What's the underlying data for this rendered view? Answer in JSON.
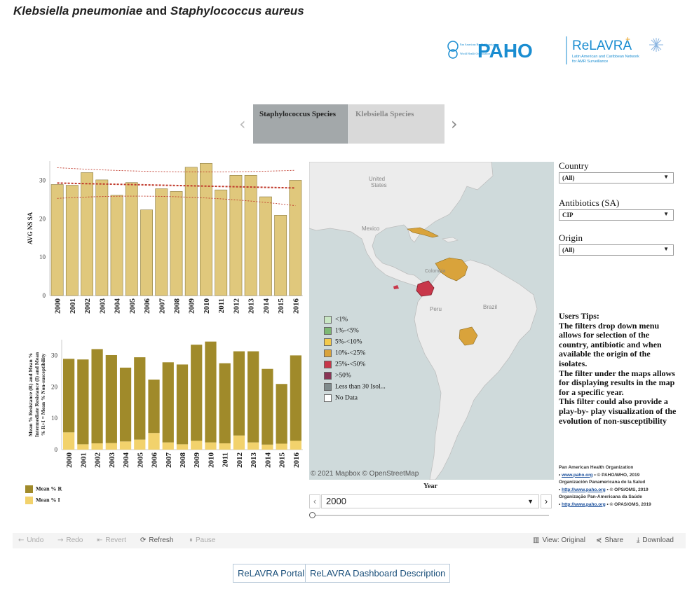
{
  "title": {
    "part1": "Klebsiella pneumoniae",
    "and": " and ",
    "part2": "Staphylococcus aureus"
  },
  "logo": {
    "paho": "PAHO",
    "relavra": "ReLAVRA",
    "relavra_sub1": "Latin American and Caribbean Network",
    "relavra_sub2": "for AMR Surveillance",
    "who_line1": "Pan American Health Organization",
    "who_line2": "World Health Organization"
  },
  "tabs": {
    "active": "Staphylococcus Species",
    "inactive": "Klebsiella Species"
  },
  "chart_data": [
    {
      "type": "bar",
      "categories": [
        "2000",
        "2001",
        "2002",
        "2003",
        "2004",
        "2005",
        "2006",
        "2007",
        "2008",
        "2009",
        "2010",
        "2011",
        "2012",
        "2013",
        "2014",
        "2015",
        "2016"
      ],
      "values": [
        28.9,
        28.7,
        32.0,
        30.1,
        26.1,
        29.4,
        22.3,
        27.8,
        27.1,
        33.4,
        34.4,
        27.5,
        31.3,
        31.3,
        25.7,
        20.9,
        30.0
      ],
      "ylabel": "AVG NS SA",
      "yticks": [
        0,
        10,
        20,
        30
      ],
      "ylim": [
        0,
        35
      ],
      "trend_line": true,
      "bar_color": "#e0c87c"
    },
    {
      "type": "bar",
      "stacked": true,
      "categories": [
        "2000",
        "2001",
        "2002",
        "2003",
        "2004",
        "2005",
        "2006",
        "2007",
        "2008",
        "2009",
        "2010",
        "2011",
        "2012",
        "2013",
        "2014",
        "2015",
        "2016"
      ],
      "series": [
        {
          "name": "Mean % R",
          "color": "#a08a2a",
          "values": [
            23.4,
            27.0,
            30.0,
            28.0,
            23.5,
            26.2,
            17.0,
            25.5,
            25.4,
            30.6,
            32.1,
            25.5,
            26.8,
            29.0,
            24.1,
            19.0,
            27.2
          ]
        },
        {
          "name": "Mean % I",
          "color": "#f2d26c",
          "values": [
            5.5,
            1.7,
            2.0,
            2.1,
            2.6,
            3.2,
            5.3,
            2.3,
            1.7,
            2.8,
            2.3,
            2.0,
            4.5,
            2.3,
            1.6,
            1.9,
            2.8
          ]
        }
      ],
      "ylabel_lines": [
        "Mean % Resistance (R) and Mean %",
        "Intermediate Resistance (I) and Mean",
        "% R+I = Mean % Non-susceptibility"
      ],
      "yticks": [
        0,
        10,
        20,
        30
      ],
      "ylim": [
        0,
        35
      ]
    }
  ],
  "legend_bottom": [
    {
      "label": "Mean % R",
      "color": "#a08a2a"
    },
    {
      "label": "Mean % I",
      "color": "#f2d26c"
    }
  ],
  "map": {
    "labels": {
      "us": "United\nStates",
      "mexico": "Mexico",
      "colombia": "Colombia",
      "peru": "Peru",
      "brazil": "Brazil"
    },
    "attribution": "© 2021 Mapbox  © OpenStreetMap",
    "legend": [
      {
        "label": "<1%",
        "color": "#c9e6c4"
      },
      {
        "label": "1%-<5%",
        "color": "#7db874"
      },
      {
        "label": "5%-<10%",
        "color": "#f2c94c"
      },
      {
        "label": "10%-<25%",
        "color": "#d9a33b"
      },
      {
        "label": "25%-<50%",
        "color": "#c8374a"
      },
      {
        "label": ">50%",
        "color": "#8a3556"
      },
      {
        "label": "Less than 30 Isol...",
        "color": "#7f8a8c"
      },
      {
        "label": "No Data",
        "color": "#ffffff"
      }
    ]
  },
  "filters": {
    "country": {
      "label": "Country",
      "value": "(All)"
    },
    "antibiotics": {
      "label": "Antibiotics (SA)",
      "value": "CIP"
    },
    "origin": {
      "label": "Origin",
      "value": "(All)"
    }
  },
  "tips": {
    "heading": "Users Tips:",
    "body": "The filters drop down menu allows for selection of the country, antibiotic and when available the origin of the isolates.\nThe filter under the maps allows for displaying results in the map for a specific year.\nThis filter could also provide a play-by- play visualization of the evolution of non-susceptibility"
  },
  "orgs": [
    {
      "name": "Pan American Health Organization",
      "link": "www.paho.org",
      "copy": "© PAHO/WHO, 2019"
    },
    {
      "name": "Organización Panamericana de la Salud",
      "link": "http://www.paho.org",
      "copy": "© OPS/OMS, 2019"
    },
    {
      "name": "Organização Pan-Americana da Saúde",
      "link": "http://www.paho.org",
      "copy": "© OPAS/OMS, 2019"
    }
  ],
  "year_filter": {
    "label": "Year",
    "value": "2000"
  },
  "toolbar": {
    "undo": "Undo",
    "redo": "Redo",
    "revert": "Revert",
    "refresh": "Refresh",
    "pause": "Pause",
    "view": "View: Original",
    "share": "Share",
    "download": "Download"
  },
  "buttons": {
    "portal": "ReLAVRA Portal",
    "description": "ReLAVRA Dashboard Description"
  }
}
